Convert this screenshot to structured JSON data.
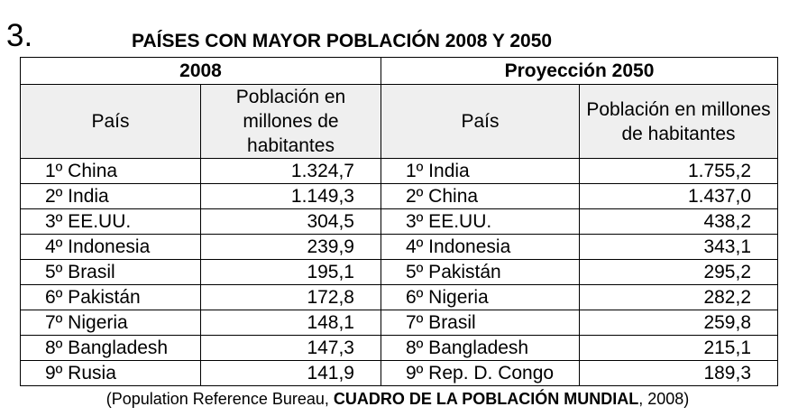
{
  "number": "3.",
  "title": "PAÍSES CON MAYOR POBLACIÓN 2008 Y 2050",
  "headers": {
    "year_2008": "2008",
    "year_2050": "Proyección 2050",
    "country": "País",
    "population": "Población en millones de habitantes"
  },
  "table": {
    "rows": [
      {
        "c2008": "1º China",
        "v2008": "1.324,7",
        "c2050": "1º India",
        "v2050": "1.755,2"
      },
      {
        "c2008": "2º India",
        "v2008": "1.149,3",
        "c2050": "2º China",
        "v2050": "1.437,0"
      },
      {
        "c2008": "3º EE.UU.",
        "v2008": "304,5",
        "c2050": "3º EE.UU.",
        "v2050": "438,2"
      },
      {
        "c2008": "4º Indonesia",
        "v2008": "239,9",
        "c2050": "4º Indonesia",
        "v2050": "343,1"
      },
      {
        "c2008": "5º Brasil",
        "v2008": "195,1",
        "c2050": "5º Pakistán",
        "v2050": "295,2"
      },
      {
        "c2008": "6º Pakistán",
        "v2008": "172,8",
        "c2050": "6º Nigeria",
        "v2050": "282,2"
      },
      {
        "c2008": "7º Nigeria",
        "v2008": "148,1",
        "c2050": "7º Brasil",
        "v2050": "259,8"
      },
      {
        "c2008": "8º Bangladesh",
        "v2008": "147,3",
        "c2050": "8º Bangladesh",
        "v2050": "215,1"
      },
      {
        "c2008": "9º Rusia",
        "v2008": "141,9",
        "c2050": "9º Rep. D. Congo",
        "v2050": "189,3"
      }
    ]
  },
  "source": {
    "prefix": "(Population Reference Bureau, ",
    "bold": "CUADRO DE LA POBLACIÓN MUNDIAL",
    "suffix": ", 2008)"
  }
}
